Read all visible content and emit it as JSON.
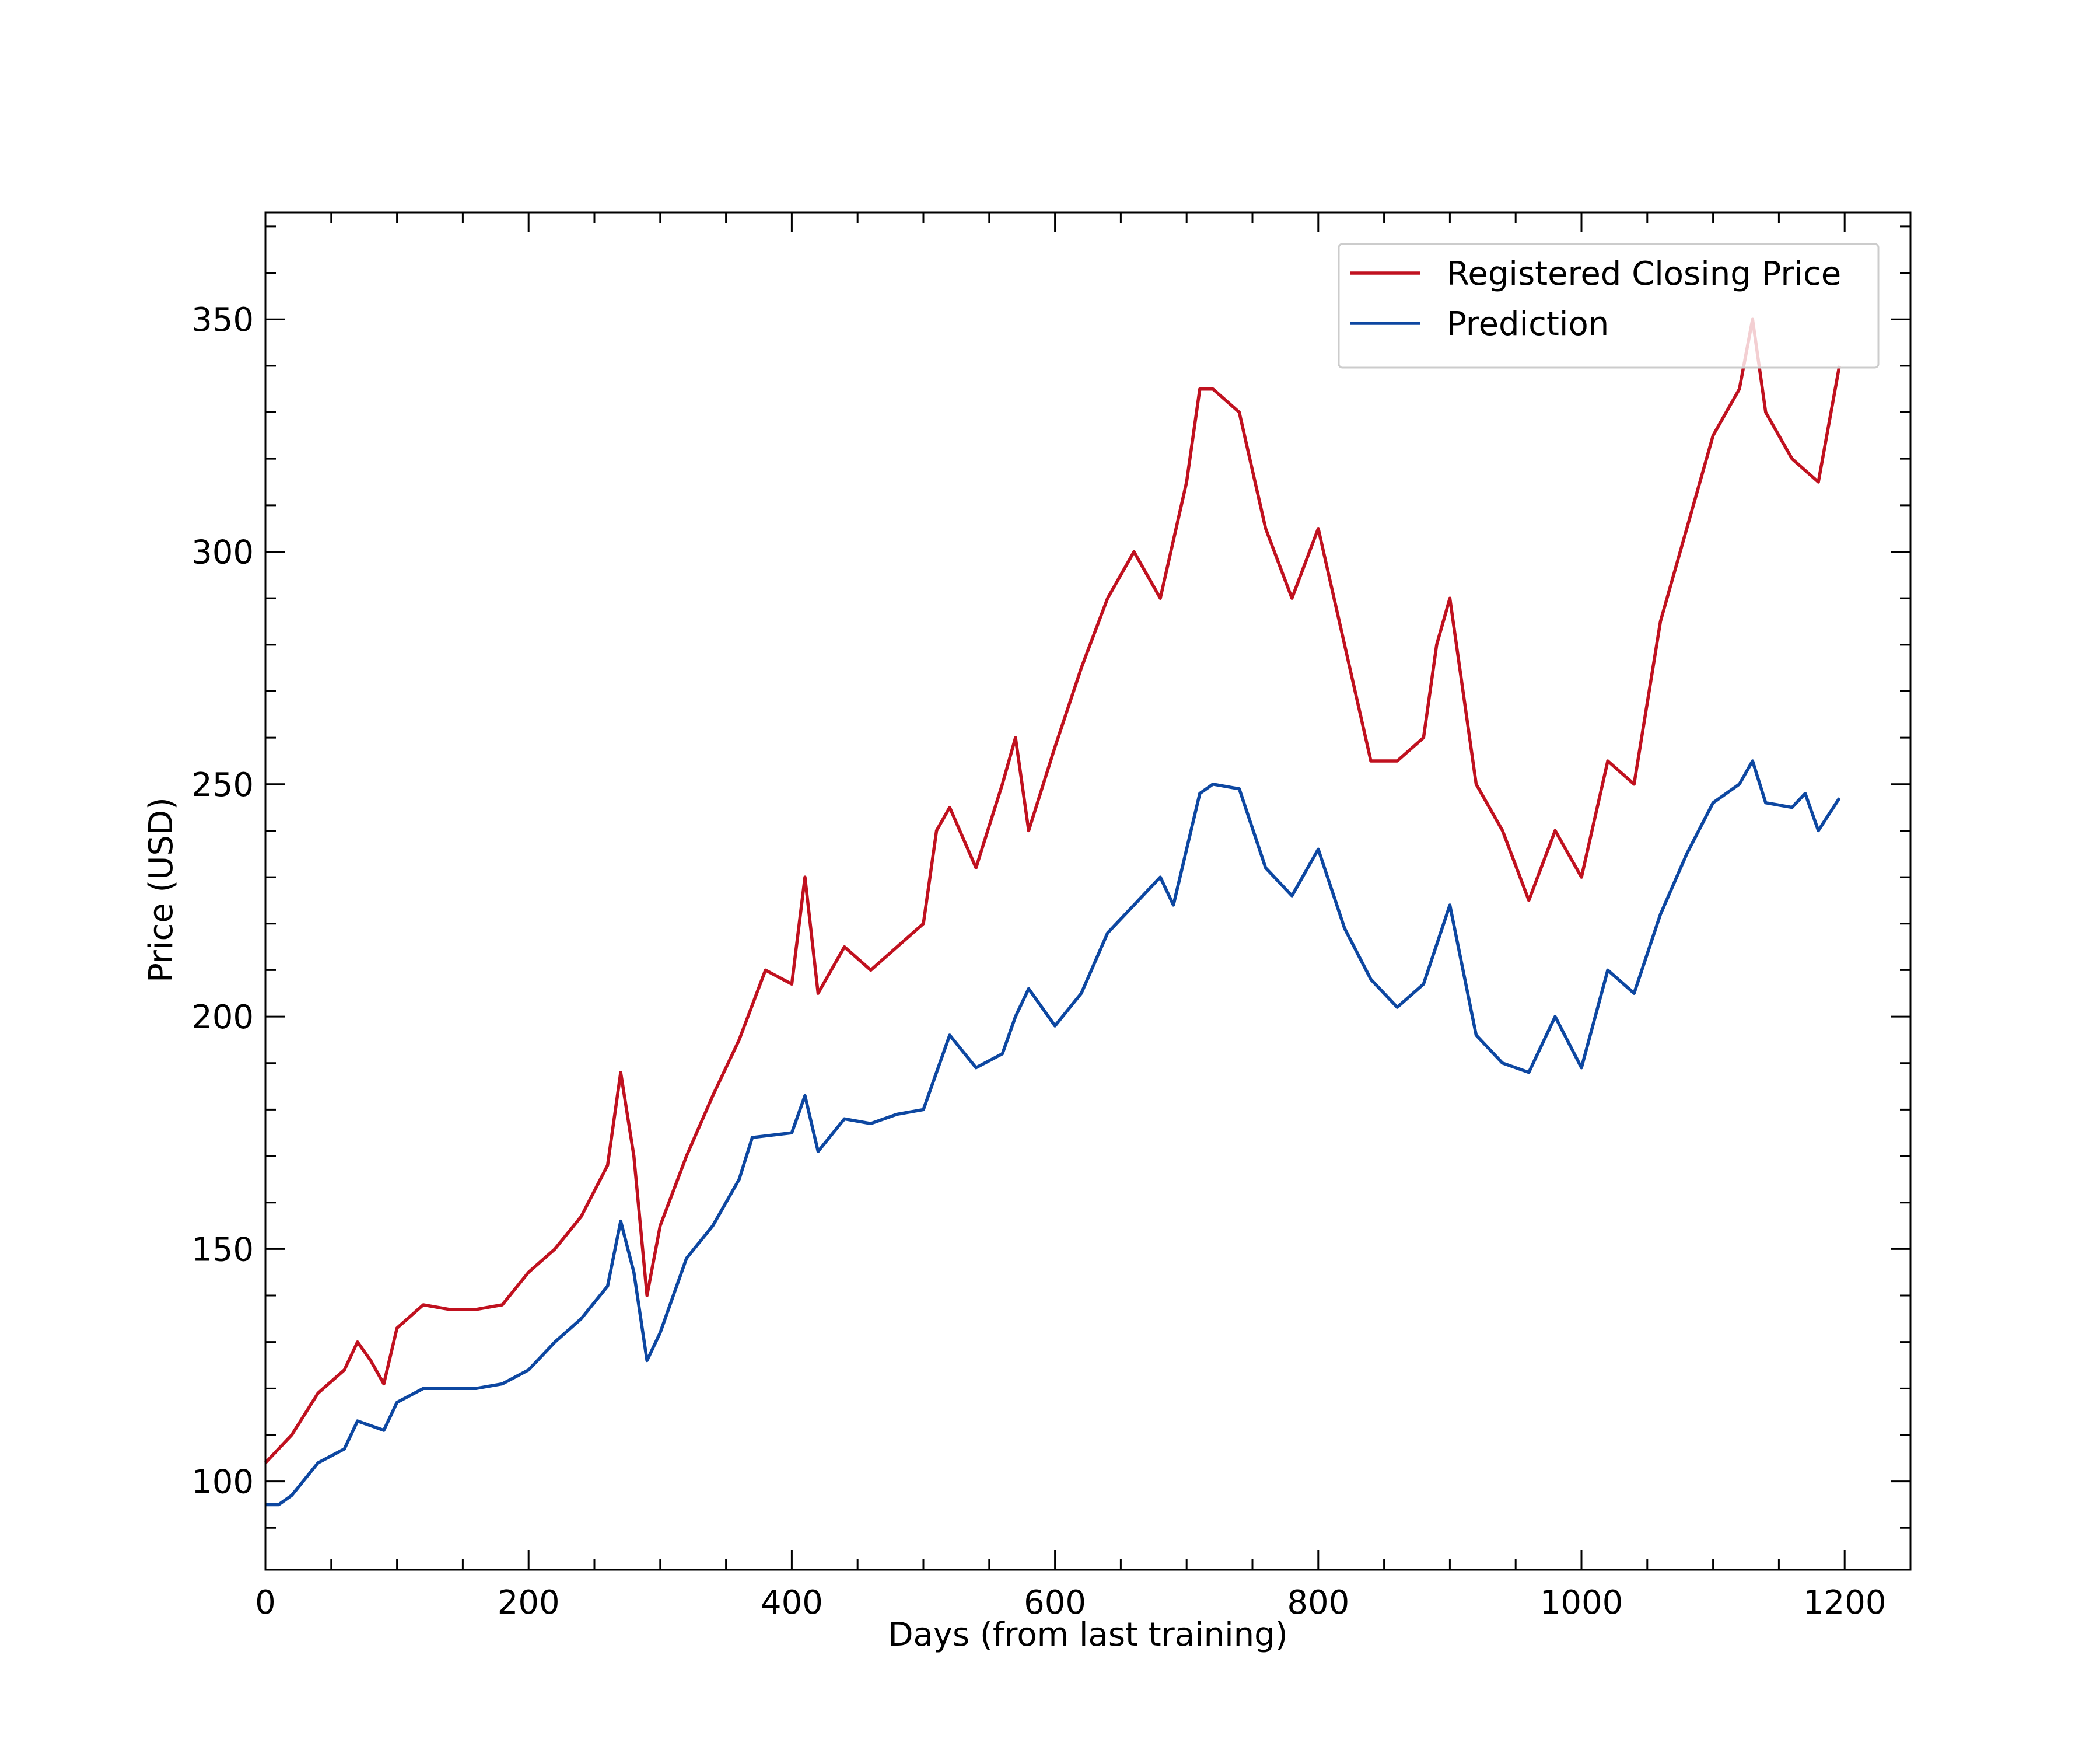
{
  "chart_data": {
    "type": "line",
    "xlabel": "Days (from last training)",
    "ylabel": "Price (USD)",
    "xlim": [
      0,
      1250
    ],
    "ylim": [
      81,
      373
    ],
    "xticks": [
      0,
      200,
      400,
      600,
      800,
      1000,
      1200
    ],
    "yticks": [
      100,
      150,
      200,
      250,
      300,
      350
    ],
    "xticks_minor": [
      50,
      100,
      150,
      250,
      300,
      350,
      450,
      500,
      550,
      650,
      700,
      750,
      850,
      900,
      950,
      1050,
      1100,
      1150
    ],
    "yticks_minor": [
      90,
      110,
      120,
      130,
      140,
      160,
      170,
      180,
      190,
      210,
      220,
      230,
      240,
      260,
      270,
      280,
      290,
      310,
      320,
      330,
      340,
      360,
      370
    ],
    "legend": "upper right",
    "series": [
      {
        "name": "Registered Closing Price",
        "color": "#c0111f",
        "x": [
          0,
          20,
          40,
          60,
          70,
          80,
          90,
          100,
          120,
          140,
          160,
          180,
          200,
          220,
          240,
          260,
          270,
          280,
          290,
          300,
          320,
          340,
          360,
          380,
          400,
          410,
          420,
          440,
          460,
          480,
          500,
          510,
          520,
          540,
          560,
          570,
          580,
          600,
          620,
          640,
          660,
          680,
          700,
          710,
          720,
          740,
          760,
          780,
          800,
          820,
          840,
          860,
          880,
          890,
          900,
          920,
          940,
          960,
          980,
          1000,
          1020,
          1040,
          1060,
          1080,
          1100,
          1120,
          1130,
          1140,
          1160,
          1180,
          1196
        ],
        "values": [
          104,
          110,
          119,
          124,
          130,
          126,
          121,
          133,
          138,
          137,
          137,
          138,
          145,
          150,
          157,
          168,
          188,
          170,
          140,
          155,
          170,
          183,
          195,
          210,
          207,
          230,
          205,
          215,
          210,
          215,
          220,
          240,
          245,
          232,
          250,
          260,
          240,
          258,
          275,
          290,
          300,
          290,
          315,
          335,
          335,
          330,
          305,
          290,
          305,
          280,
          255,
          255,
          260,
          280,
          290,
          250,
          240,
          225,
          240,
          230,
          255,
          250,
          285,
          305,
          325,
          335,
          350,
          330,
          320,
          315,
          340
        ]
      },
      {
        "name": "Prediction",
        "color": "#0d47a1",
        "x": [
          0,
          10,
          20,
          40,
          60,
          70,
          90,
          100,
          120,
          140,
          160,
          180,
          200,
          220,
          240,
          260,
          270,
          280,
          290,
          300,
          320,
          340,
          360,
          370,
          400,
          410,
          420,
          440,
          460,
          480,
          500,
          520,
          540,
          560,
          570,
          580,
          600,
          620,
          640,
          660,
          680,
          690,
          710,
          720,
          740,
          760,
          780,
          800,
          820,
          840,
          860,
          880,
          900,
          920,
          940,
          960,
          980,
          1000,
          1020,
          1040,
          1060,
          1080,
          1100,
          1120,
          1130,
          1140,
          1160,
          1170,
          1180,
          1196
        ],
        "values": [
          95,
          95,
          97,
          104,
          107,
          113,
          111,
          117,
          120,
          120,
          120,
          121,
          124,
          130,
          135,
          142,
          156,
          145,
          126,
          132,
          148,
          155,
          165,
          174,
          175,
          183,
          171,
          178,
          177,
          179,
          180,
          196,
          189,
          192,
          200,
          206,
          198,
          205,
          218,
          224,
          230,
          224,
          248,
          250,
          249,
          232,
          226,
          236,
          219,
          208,
          202,
          207,
          224,
          196,
          190,
          188,
          200,
          189,
          210,
          205,
          222,
          235,
          246,
          250,
          255,
          246,
          245,
          248,
          240,
          247
        ]
      }
    ]
  }
}
